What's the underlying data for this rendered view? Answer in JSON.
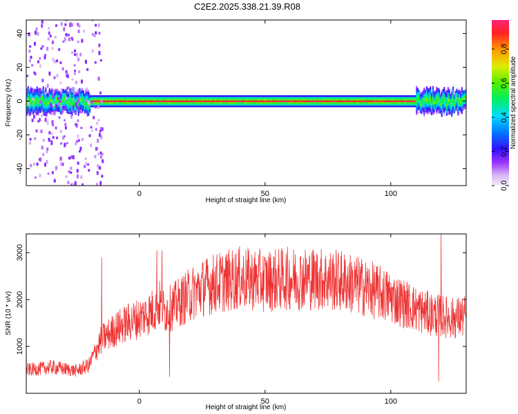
{
  "title": "C2E2.2025.338.21.39.R08",
  "chart_data": [
    {
      "type": "heatmap",
      "xlabel": "Height of straight line (km)",
      "ylabel": "Frequency (Hz)",
      "xlim": [
        -45,
        130
      ],
      "ylim": [
        -50,
        48
      ],
      "xticks": [
        0,
        50,
        100
      ],
      "yticks": [
        -40,
        -20,
        0,
        20,
        40
      ],
      "colorbar": {
        "label": "Normalized spectral amplitude",
        "range": [
          0,
          0.97
        ],
        "ticks": [
          0.0,
          0.2,
          0.4,
          0.6,
          0.8
        ],
        "tick_labels": [
          "0.0",
          "0.2",
          "0.4",
          "0.6",
          "0.8"
        ]
      },
      "ridge": {
        "description_values": "dominant frequency near 0 Hz across the full height range",
        "frequency_hz": 0,
        "noisy_x_ranges": [
          [
            -45,
            -20
          ],
          [
            110,
            130
          ]
        ],
        "scatter_x_range": [
          -45,
          -15
        ]
      },
      "grid": false
    },
    {
      "type": "line",
      "xlabel": "Height of straight line (km)",
      "ylabel": "SNR (10 * v/v)",
      "xlim": [
        -45,
        130
      ],
      "ylim": [
        0,
        3400
      ],
      "xticks": [
        0,
        50,
        100
      ],
      "yticks": [
        1000,
        2000,
        3000
      ],
      "color": "#ee3333",
      "profile": [
        [
          -45,
          500
        ],
        [
          -40,
          520
        ],
        [
          -35,
          560
        ],
        [
          -30,
          520
        ],
        [
          -25,
          480
        ],
        [
          -20,
          600
        ],
        [
          -17,
          950
        ],
        [
          -15,
          1150
        ],
        [
          -10,
          1350
        ],
        [
          -5,
          1500
        ],
        [
          0,
          1600
        ],
        [
          5,
          1750
        ],
        [
          8,
          1900
        ],
        [
          10,
          1750
        ],
        [
          15,
          1900
        ],
        [
          20,
          2100
        ],
        [
          25,
          2250
        ],
        [
          30,
          2350
        ],
        [
          40,
          2450
        ],
        [
          50,
          2400
        ],
        [
          60,
          2450
        ],
        [
          70,
          2450
        ],
        [
          80,
          2400
        ],
        [
          90,
          2250
        ],
        [
          100,
          2050
        ],
        [
          110,
          1800
        ],
        [
          115,
          1700
        ],
        [
          120,
          1650
        ],
        [
          125,
          1600
        ],
        [
          130,
          1650
        ]
      ],
      "spikes": [
        [
          -15,
          2900
        ],
        [
          7,
          3050
        ],
        [
          9,
          3050
        ],
        [
          12,
          350
        ],
        [
          120,
          3400
        ],
        [
          119,
          250
        ]
      ],
      "grid": false
    }
  ]
}
